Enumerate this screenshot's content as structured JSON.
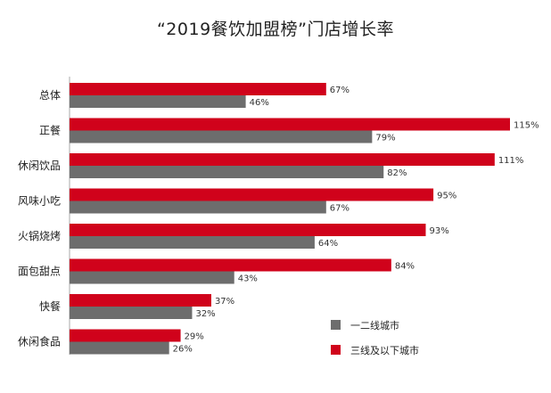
{
  "chart_data": {
    "type": "bar",
    "orientation": "horizontal",
    "title": "“2019餐饮加盟榜”门店增长率",
    "categories": [
      "总体",
      "正餐",
      "休闲饮品",
      "风味小吃",
      "火锅烧烤",
      "面包甜点",
      "快餐",
      "休闲食品"
    ],
    "series": [
      {
        "name": "三线及以下城市",
        "color": "#d0021b",
        "values": [
          67,
          115,
          111,
          95,
          93,
          84,
          37,
          29
        ],
        "labels": [
          "67%",
          "115%",
          "111%",
          "95%",
          "93%",
          "84%",
          "37%",
          "29%"
        ]
      },
      {
        "name": "一二线城市",
        "color": "#6d6d6d",
        "values": [
          46,
          79,
          82,
          67,
          64,
          43,
          32,
          26
        ],
        "labels": [
          "46%",
          "79%",
          "82%",
          "67%",
          "64%",
          "43%",
          "32%",
          "26%"
        ]
      }
    ],
    "xlim": [
      0,
      115
    ],
    "grid": false,
    "axis_color": "#aaaaaa",
    "legend": {
      "position": "bottom-right",
      "order": [
        "一二线城市",
        "三线及以下城市"
      ]
    }
  }
}
